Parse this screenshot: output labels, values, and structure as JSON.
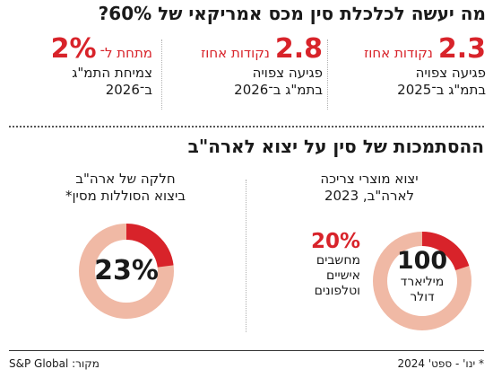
{
  "title": "מה יעשה לכלכלת סין מכס אמריקאי של 60%?",
  "stats": [
    {
      "value": "2.3",
      "unit": "נקודות אחוז",
      "line1": "פגיעה צפויה",
      "line2": "בתמ\"ג ב־2025"
    },
    {
      "value": "2.8",
      "unit": "נקודות אחוז",
      "line1": "פגיעה צפויה",
      "line2": "בתמ\"ג ב־2026"
    },
    {
      "value": "2%",
      "unit": "מתחת ל־",
      "line1": "צמיחת התמ\"ג",
      "line2": "ב־2026"
    }
  ],
  "section_title": "ההסתמכות של סין על יצוא לארה\"ב",
  "left_col": {
    "line1": "חלקה של ארה\"ב",
    "line2": "ביצוא הסוללות מסין*",
    "value": "23%",
    "percent": 23
  },
  "right_col": {
    "line1": "יצוא מוצרי צריכה",
    "line2": "לארה\"ב, 2023",
    "center_big": "100",
    "center_line1": "מיליארד",
    "center_line2": "דולר",
    "share_value": "20%",
    "share_line1": "מחשבים",
    "share_line2": "אישיים",
    "share_line3": "וטלפונים",
    "percent": 20
  },
  "colors": {
    "accent": "#d8232a",
    "ring": "#f0b9a5"
  },
  "footer": {
    "note": "* ינו' - ספט' 2024",
    "source": "מקור: S&P Global"
  }
}
